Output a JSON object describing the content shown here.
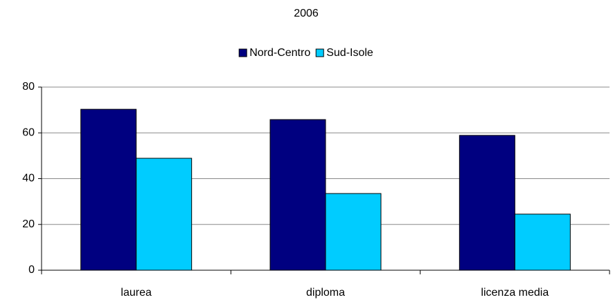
{
  "chart_data": {
    "type": "bar",
    "title": "2006",
    "categories": [
      "laurea",
      "diploma",
      "licenza media"
    ],
    "series": [
      {
        "name": "Nord-Centro",
        "color": "#000080",
        "values": [
          70.3,
          65.8,
          58.9
        ]
      },
      {
        "name": "Sud-Isole",
        "color": "#00ccff",
        "values": [
          48.9,
          33.5,
          24.5
        ]
      }
    ],
    "ylim": [
      0,
      80
    ],
    "yticks": [
      0,
      20,
      40,
      60,
      80
    ],
    "grid": true,
    "legend": "top"
  }
}
